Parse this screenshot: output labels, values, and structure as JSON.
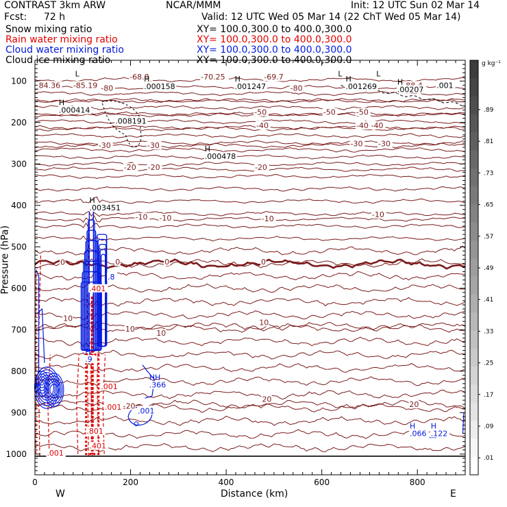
{
  "header": {
    "model": "CONTRAST  3km ARW",
    "org": "NCAR/MMM",
    "init": "Init: 12 UTC Sun 02 Mar 14",
    "fcst_label": "Fcst:",
    "fcst_value": "72 h",
    "valid": "Valid: 12 UTC Wed 05 Mar 14 (22 ChT Wed 05 Mar 14)"
  },
  "fields": [
    {
      "name": "Snow mixing ratio",
      "xy": "XY= 100.0,300.0 to 400.0,300.0",
      "color": "#000000"
    },
    {
      "name": "Rain water mixing ratio",
      "xy": "XY= 100.0,300.0 to 400.0,300.0",
      "color": "#e00000"
    },
    {
      "name": "Cloud water mixing ratio",
      "xy": "XY= 100.0,300.0 to 400.0,300.0",
      "color": "#0018e0"
    },
    {
      "name": "Cloud ice mixing ratio",
      "xy": "XY= 100.0,300.0 to 400.0,300.0",
      "color": "#000000"
    }
  ],
  "colorbar": {
    "unit": "g kg⁻¹",
    "ticks": [
      ".89",
      ".81",
      ".73",
      ".65",
      ".57",
      ".49",
      ".41",
      ".33",
      ".25",
      ".17",
      ".09",
      ".01"
    ]
  },
  "chart_data": {
    "type": "contour",
    "xlabel": "Distance (km)",
    "ylabel": "Pressure (hPa)",
    "x_ticks": [
      0,
      200,
      400,
      600,
      800
    ],
    "y_ticks": [
      100,
      200,
      300,
      400,
      500,
      600,
      700,
      800,
      900,
      1000
    ],
    "xlim": [
      0,
      900
    ],
    "ylim": [
      1050,
      50
    ],
    "west_label": "W",
    "east_label": "E",
    "temperature_isotherms": [
      {
        "value": -80,
        "p": 116
      },
      {
        "value": -70,
        "p": 97
      },
      {
        "value": -60,
        "p": 148
      },
      {
        "value": -50,
        "p": 180
      },
      {
        "value": -40,
        "p": 212
      },
      {
        "value": -30,
        "p": 256
      },
      {
        "value": -20,
        "p": 313
      },
      {
        "value": -10,
        "p": 433
      },
      {
        "value": 0,
        "p": 541
      },
      {
        "value": 10,
        "p": 692
      },
      {
        "value": 20,
        "p": 880
      }
    ],
    "temperature_labels": [
      {
        "text": "-68.8",
        "x": 198,
        "p": 95
      },
      {
        "text": "-70.25",
        "x": 347,
        "p": 95
      },
      {
        "text": "-69.7",
        "x": 479,
        "p": 95
      },
      {
        "text": "84.36",
        "x": 8,
        "p": 115
      },
      {
        "text": "-85.19",
        "x": 80,
        "p": 115
      },
      {
        "text": "-80",
        "x": 138,
        "p": 122
      },
      {
        "text": "-80",
        "x": 249,
        "p": 120
      },
      {
        "text": "-80",
        "x": 534,
        "p": 122
      },
      {
        "text": "87.97",
        "x": 655,
        "p": 115
      },
      {
        "text": "-88.4",
        "x": 770,
        "p": 115
      },
      {
        "text": "-50",
        "x": 459,
        "p": 180
      },
      {
        "text": "-50",
        "x": 603,
        "p": 180
      },
      {
        "text": "-50",
        "x": 672,
        "p": 180
      },
      {
        "text": "-40",
        "x": 463,
        "p": 212
      },
      {
        "text": "-40",
        "x": 672,
        "p": 212
      },
      {
        "text": "-40",
        "x": 703,
        "p": 212
      },
      {
        "text": "-30",
        "x": 133,
        "p": 260
      },
      {
        "text": "-30",
        "x": 235,
        "p": 260
      },
      {
        "text": "-30",
        "x": 660,
        "p": 256
      },
      {
        "text": "-30",
        "x": 718,
        "p": 256
      },
      {
        "text": "-20",
        "x": 186,
        "p": 313
      },
      {
        "text": "-20",
        "x": 236,
        "p": 313
      },
      {
        "text": "-20",
        "x": 460,
        "p": 313
      },
      {
        "text": "-10",
        "x": 210,
        "p": 433
      },
      {
        "text": "-10",
        "x": 260,
        "p": 435
      },
      {
        "text": "-10",
        "x": 474,
        "p": 437
      },
      {
        "text": "-10",
        "x": 705,
        "p": 427
      },
      {
        "text": "0",
        "x": 53,
        "p": 542
      },
      {
        "text": "0",
        "x": 168,
        "p": 541
      },
      {
        "text": "0",
        "x": 271,
        "p": 541
      },
      {
        "text": "0",
        "x": 473,
        "p": 541
      },
      {
        "text": "10",
        "x": 59,
        "p": 677
      },
      {
        "text": "10",
        "x": 189,
        "p": 703
      },
      {
        "text": "10",
        "x": 254,
        "p": 713
      },
      {
        "text": "10",
        "x": 469,
        "p": 687
      },
      {
        "text": "20",
        "x": 190,
        "p": 889
      },
      {
        "text": "20",
        "x": 475,
        "p": 872
      },
      {
        "text": "20",
        "x": 783,
        "p": 885
      }
    ],
    "extrema_labels": [
      {
        "letter": "L",
        "value": "",
        "x": 84,
        "p": 105
      },
      {
        "letter": "H",
        "value": ".000158",
        "x": 228,
        "p": 118
      },
      {
        "letter": "H",
        "value": ".001247",
        "x": 418,
        "p": 118
      },
      {
        "letter": "L",
        "value": "",
        "x": 634,
        "p": 105
      },
      {
        "letter": "L",
        "value": "",
        "x": 714,
        "p": 105
      },
      {
        "letter": "H",
        "value": ".001269",
        "x": 650,
        "p": 118
      },
      {
        "letter": "H",
        "value": ".00207",
        "x": 758,
        "p": 125
      },
      {
        "letter": "",
        "value": ".001",
        "x": 840,
        "p": 115
      },
      {
        "letter": "H",
        "value": ".000414",
        "x": 50,
        "p": 175
      },
      {
        "letter": "",
        "value": ".008191",
        "x": 168,
        "p": 201
      },
      {
        "letter": "H",
        "value": ".000478",
        "x": 355,
        "p": 286
      },
      {
        "letter": "H",
        "value": ".003451",
        "x": 114,
        "p": 410
      },
      {
        "letter": "H",
        "value": ".9",
        "x": 105,
        "p": 776
      },
      {
        "letter": "HH",
        "value": ".366",
        "x": 239,
        "p": 838
      },
      {
        "letter": "",
        "value": ".001",
        "x": 220,
        "p": 898
      },
      {
        "letter": "H",
        "value": ".066",
        "x": 784,
        "p": 955
      },
      {
        "letter": "H",
        "value": ".122",
        "x": 828,
        "p": 955
      }
    ],
    "rain_labels": [
      {
        "text": ".401",
        "x": 113,
        "p": 605
      },
      {
        "text": ".001",
        "x": 138,
        "p": 842
      },
      {
        "text": ".001",
        "x": 146,
        "p": 891
      },
      {
        "text": ".801",
        "x": 108,
        "p": 949
      },
      {
        "text": ".401",
        "x": 114,
        "p": 985
      },
      {
        "text": ".001",
        "x": 25,
        "p": 1002
      }
    ],
    "cloud_water_labels": [
      {
        "text": ".8",
        "x": 152,
        "p": 577
      },
      {
        "text": ".001",
        "x": 215,
        "p": 900
      }
    ]
  }
}
